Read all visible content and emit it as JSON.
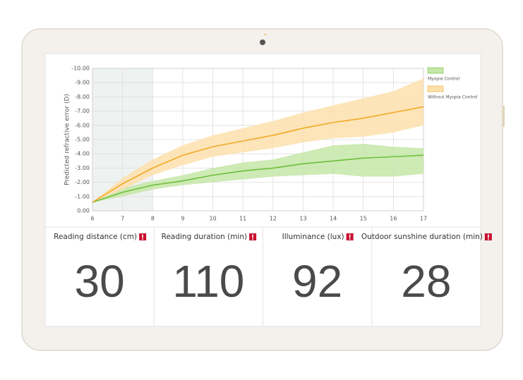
{
  "chart_data": {
    "type": "line",
    "ylabel": "Predicted refractive error (D)",
    "x": [
      6,
      7,
      8,
      9,
      10,
      11,
      12,
      13,
      14,
      15,
      16,
      17
    ],
    "xlim": [
      6,
      17
    ],
    "xticks": [
      6,
      7,
      8,
      9,
      10,
      11,
      12,
      13,
      14,
      15,
      16,
      17
    ],
    "ylim": [
      0,
      -10
    ],
    "yticks": [
      {
        "value": 0,
        "label": "0.00"
      },
      {
        "value": -1,
        "label": "-1.00"
      },
      {
        "value": -2,
        "label": "-2.00"
      },
      {
        "value": -3,
        "label": "-3.00"
      },
      {
        "value": -4,
        "label": "-4.00"
      },
      {
        "value": -5,
        "label": "-5.00"
      },
      {
        "value": -6,
        "label": "-6.00"
      },
      {
        "value": -7,
        "label": "-7.00"
      },
      {
        "value": -8,
        "label": "-8.00"
      },
      {
        "value": -9,
        "label": "-9.00"
      },
      {
        "value": -10,
        "label": "-10.00"
      }
    ],
    "grid": true,
    "shaded_xrange": [
      6,
      8
    ],
    "legend": "right",
    "series": [
      {
        "name": "Myopia Control",
        "color": "#6cbf3a",
        "band_color": "#c6e6a8",
        "values": [
          -0.6,
          -1.3,
          -1.8,
          -2.1,
          -2.5,
          -2.8,
          -3.0,
          -3.3,
          -3.5,
          -3.7,
          -3.8,
          -3.9
        ],
        "band_upper": [
          -0.6,
          -1.6,
          -2.1,
          -2.5,
          -3.0,
          -3.4,
          -3.6,
          -4.1,
          -4.6,
          -4.7,
          -4.5,
          -4.4
        ],
        "band_lower": [
          -0.6,
          -1.0,
          -1.5,
          -1.8,
          -2.0,
          -2.2,
          -2.4,
          -2.5,
          -2.6,
          -2.4,
          -2.4,
          -2.6
        ]
      },
      {
        "name": "Without Myopia Control",
        "color": "#f2a825",
        "band_color": "#fde1ad",
        "values": [
          -0.6,
          -1.9,
          -3.0,
          -3.9,
          -4.5,
          -4.9,
          -5.3,
          -5.8,
          -6.2,
          -6.5,
          -6.9,
          -7.3
        ],
        "band_upper": [
          -0.6,
          -2.3,
          -3.6,
          -4.6,
          -5.3,
          -5.8,
          -6.3,
          -6.9,
          -7.4,
          -7.9,
          -8.4,
          -9.3
        ],
        "band_lower": [
          -0.6,
          -1.5,
          -2.5,
          -3.2,
          -3.8,
          -4.1,
          -4.4,
          -4.8,
          -5.1,
          -5.2,
          -5.5,
          -6.0
        ]
      }
    ]
  },
  "panels": [
    {
      "label": "Reading distance (cm)",
      "value": "30"
    },
    {
      "label": "Reading duration (min)",
      "value": "110"
    },
    {
      "label": "Illuminance (lux)",
      "value": "92"
    },
    {
      "label": "Outdoor sunshine duration (min)",
      "value": "28"
    }
  ]
}
